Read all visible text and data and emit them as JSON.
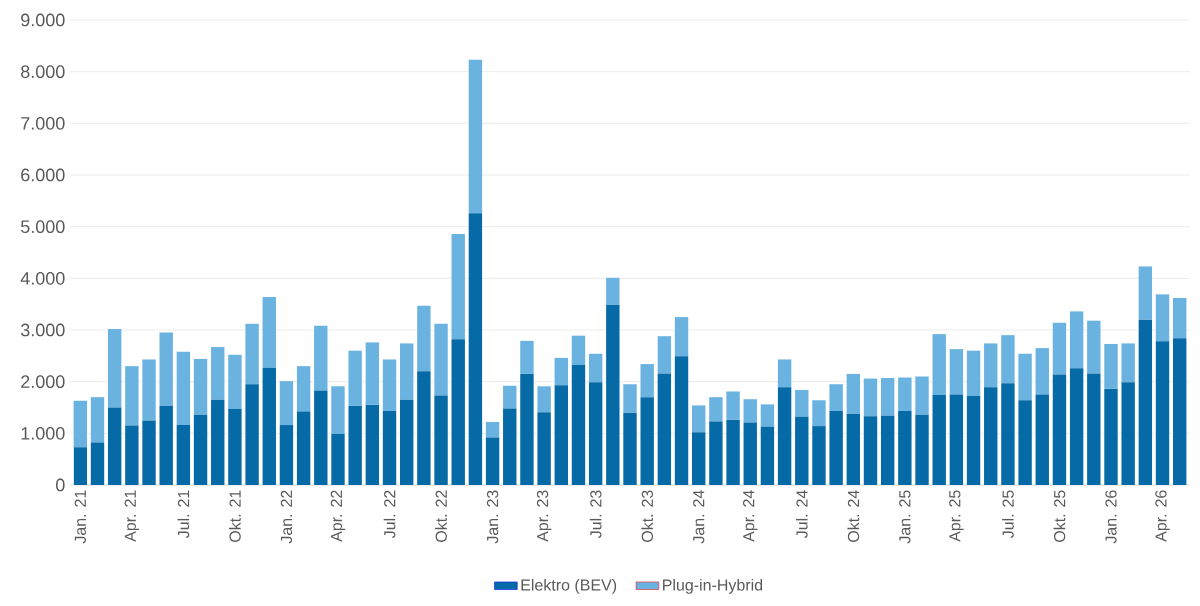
{
  "chart_data": {
    "type": "bar",
    "stacked": true,
    "categories": [
      "Jan. 21",
      null,
      null,
      "Apr. 21",
      null,
      null,
      "Jul. 21",
      null,
      null,
      "Okt. 21",
      null,
      null,
      "Jan. 22",
      null,
      null,
      "Apr. 22",
      null,
      null,
      "Jul. 22",
      null,
      null,
      "Okt. 22",
      null,
      null,
      "Jan. 23",
      null,
      null,
      "Apr. 23",
      null,
      null,
      "Jul. 23",
      null,
      null,
      "Okt. 23",
      null,
      null,
      "Jan. 24",
      null,
      null,
      "Apr. 24",
      null,
      null,
      "Jul. 24",
      null,
      null,
      "Okt. 24",
      null,
      null,
      "Jan. 25",
      null,
      null,
      "Apr. 25",
      null,
      null,
      "Jul. 25",
      null,
      null,
      "Okt. 25",
      null,
      null,
      "Jan. 26",
      null,
      null,
      "Apr. 26",
      null
    ],
    "series": [
      {
        "name": "Elektro (BEV)",
        "color": "#066aa6",
        "values": [
          730,
          820,
          1500,
          1150,
          1250,
          1530,
          1160,
          1360,
          1650,
          1470,
          1950,
          2270,
          1160,
          1420,
          1830,
          990,
          1530,
          1550,
          1430,
          1650,
          2200,
          1730,
          2820,
          5260,
          920,
          1480,
          2150,
          1410,
          1930,
          2320,
          1990,
          3490,
          1400,
          1700,
          2160,
          2490,
          1020,
          1230,
          1260,
          1210,
          1130,
          1890,
          1320,
          1140,
          1430,
          1380,
          1330,
          1340,
          1430,
          1360,
          1740,
          1750,
          1720,
          1890,
          1970,
          1640,
          1750,
          2140,
          2260,
          2160,
          1860,
          1990,
          3200,
          2780,
          2840
        ]
      },
      {
        "name": "Plug-in-Hybrid",
        "color": "#6ab3e0",
        "values": [
          900,
          880,
          1520,
          1150,
          1180,
          1420,
          1420,
          1080,
          1020,
          1050,
          1170,
          1370,
          850,
          880,
          1250,
          920,
          1070,
          1210,
          1000,
          1090,
          1270,
          1390,
          2040,
          2970,
          300,
          440,
          640,
          500,
          530,
          570,
          550,
          520,
          550,
          640,
          720,
          760,
          520,
          470,
          550,
          450,
          430,
          540,
          520,
          500,
          520,
          770,
          730,
          730,
          650,
          740,
          1180,
          880,
          880,
          850,
          930,
          900,
          900,
          1000,
          1100,
          1020,
          870,
          750,
          1030,
          910,
          780
        ]
      }
    ],
    "ylim": [
      0,
      9000
    ],
    "yticks": [
      {
        "value": 0,
        "label": "0"
      },
      {
        "value": 1000,
        "label": "1.000"
      },
      {
        "value": 2000,
        "label": "2.000"
      },
      {
        "value": 3000,
        "label": "3.000"
      },
      {
        "value": 4000,
        "label": "4.000"
      },
      {
        "value": 5000,
        "label": "5.000"
      },
      {
        "value": 6000,
        "label": "6.000"
      },
      {
        "value": 7000,
        "label": "7.000"
      },
      {
        "value": 8000,
        "label": "8.000"
      },
      {
        "value": 9000,
        "label": "9.000"
      }
    ],
    "grid": "y",
    "legend": "bottom"
  }
}
